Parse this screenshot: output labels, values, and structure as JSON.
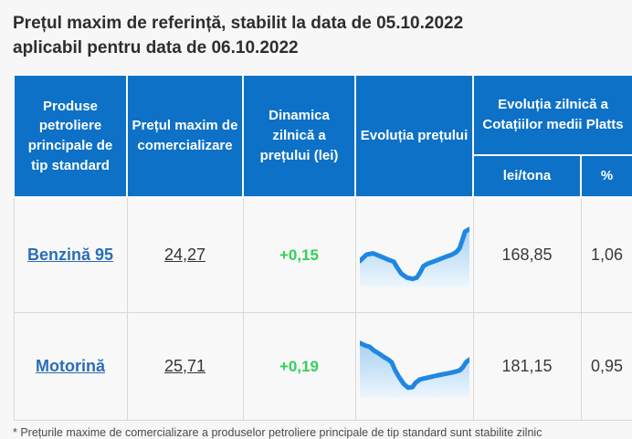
{
  "page": {
    "title_line1": "Prețul maxim de referință, stabilit la data de 05.10.2022",
    "title_line2": "aplicabil pentru data de 06.10.2022",
    "footnote": "* Prețurile maxime de comercializare a produselor petroliere principale de tip standard sunt stabilite zilnic"
  },
  "colors": {
    "header_bg": "#0d71c7",
    "link": "#2a6db8",
    "positive": "#31d158",
    "chart_line": "#1f87e3",
    "chart_fill_top": "#a9d1f2",
    "chart_fill_bottom": "#edf6fd",
    "page_bg": "#f7f7f7",
    "cell_bg": "#f8f8f8",
    "cell_border": "#d9d9d9"
  },
  "table": {
    "headers": {
      "products": "Produse petroliere principale de tip standard",
      "max_price": "Prețul maxim de comercializare",
      "daily_dynamic": "Dinamica zilnică a prețului (lei)",
      "price_evolution": "Evoluția prețului",
      "platts": "Evoluția zilnică a Cotațiilor medii Platts",
      "platts_lei": "lei/tona",
      "platts_pct": "%"
    },
    "rows": [
      {
        "product": "Benzină 95",
        "max_price": "24,27",
        "daily_change": "+0,15",
        "platts_lei": "168,85",
        "platts_pct": "1,06"
      },
      {
        "product": "Motorină",
        "max_price": "25,71",
        "daily_change": "+0,19",
        "platts_lei": "181,15",
        "platts_pct": "0,95"
      }
    ]
  },
  "chart_data": [
    {
      "type": "area",
      "label": "Evoluția prețului – Benzină 95",
      "units": "sparkline, normalized 0-100 (no axes or tick labels shown)",
      "points": [
        [
          0,
          60
        ],
        [
          6,
          50
        ],
        [
          12,
          48
        ],
        [
          18,
          52
        ],
        [
          26,
          58
        ],
        [
          31,
          61
        ],
        [
          34,
          70
        ],
        [
          38,
          80
        ],
        [
          43,
          86
        ],
        [
          48,
          88
        ],
        [
          52,
          86
        ],
        [
          55,
          78
        ],
        [
          58,
          68
        ],
        [
          62,
          64
        ],
        [
          67,
          61
        ],
        [
          73,
          57
        ],
        [
          79,
          53
        ],
        [
          84,
          50
        ],
        [
          88,
          46
        ],
        [
          91,
          40
        ],
        [
          93,
          30
        ],
        [
          96,
          14
        ],
        [
          100,
          10
        ]
      ]
    },
    {
      "type": "area",
      "label": "Evoluția prețului – Motorină",
      "units": "sparkline, normalized 0-100 (no axes or tick labels shown)",
      "points": [
        [
          0,
          14
        ],
        [
          5,
          18
        ],
        [
          9,
          20
        ],
        [
          13,
          26
        ],
        [
          17,
          30
        ],
        [
          22,
          36
        ],
        [
          26,
          40
        ],
        [
          29,
          44
        ],
        [
          32,
          56
        ],
        [
          36,
          68
        ],
        [
          40,
          78
        ],
        [
          44,
          84
        ],
        [
          48,
          83
        ],
        [
          51,
          76
        ],
        [
          55,
          71
        ],
        [
          60,
          69
        ],
        [
          65,
          67
        ],
        [
          70,
          65
        ],
        [
          76,
          63
        ],
        [
          82,
          61
        ],
        [
          87,
          59
        ],
        [
          91,
          57
        ],
        [
          94,
          52
        ],
        [
          97,
          44
        ],
        [
          100,
          40
        ]
      ]
    }
  ]
}
